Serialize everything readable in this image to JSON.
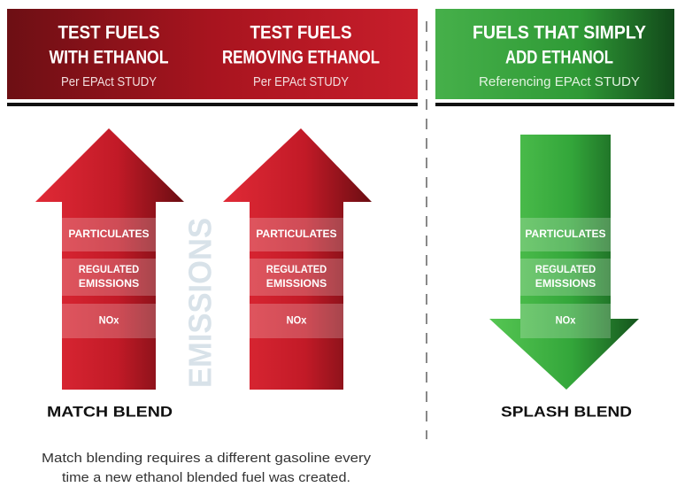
{
  "header": {
    "columns": [
      {
        "title_lines": [
          "TEST FUELS",
          "WITH ETHANOL"
        ],
        "subtitle": "Per EPAct STUDY"
      },
      {
        "title_lines": [
          "TEST FUELS",
          "REMOVING ETHANOL"
        ],
        "subtitle": "Per EPAct STUDY"
      },
      {
        "title_lines": [
          "FUELS THAT SIMPLY",
          "ADD ETHANOL"
        ],
        "subtitle": "Referencing EPAct STUDY"
      }
    ]
  },
  "arrows": [
    {
      "labels": [
        [
          "PARTICULATES"
        ],
        [
          "REGULATED",
          "EMISSIONS"
        ],
        [
          "NOx"
        ]
      ]
    },
    {
      "labels": [
        [
          "PARTICULATES"
        ],
        [
          "REGULATED",
          "EMISSIONS"
        ],
        [
          "NOx"
        ]
      ]
    },
    {
      "labels": [
        [
          "PARTICULATES"
        ],
        [
          "REGULATED",
          "EMISSIONS"
        ],
        [
          "NOx"
        ]
      ]
    }
  ],
  "side_label": "EMISSIONS",
  "blends": [
    "MATCH BLEND",
    "SPLASH BLEND"
  ],
  "caption_lines": [
    "Match blending requires a different gasoline every",
    "time  a new ethanol blended fuel was created."
  ]
}
